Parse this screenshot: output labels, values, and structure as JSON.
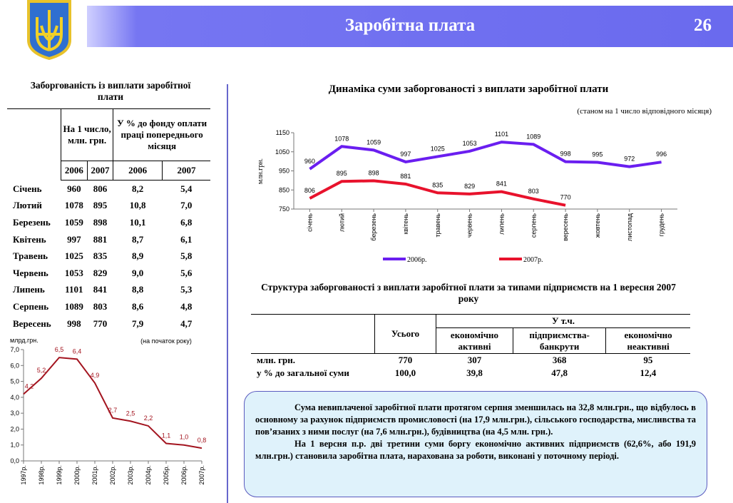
{
  "header": {
    "title": "Заробітна плата",
    "page": "26"
  },
  "table1": {
    "title": "Заборгованість із виплати заробітної плати",
    "headers": [
      "На 1 число, млн. грн.",
      "У % до фонду оплати праці попереднього місяця"
    ],
    "years": [
      "2006",
      "2007",
      "2006",
      "2007"
    ],
    "rows": [
      [
        "Січень",
        "960",
        "806",
        "8,2",
        "5,4"
      ],
      [
        "Лютий",
        "1078",
        "895",
        "10,8",
        "7,0"
      ],
      [
        "Березень",
        "1059",
        "898",
        "10,1",
        "6,8"
      ],
      [
        "Квітень",
        "997",
        "881",
        "8,7",
        "6,1"
      ],
      [
        "Травень",
        "1025",
        "835",
        "8,9",
        "5,8"
      ],
      [
        "Червень",
        "1053",
        "829",
        "9,0",
        "5,6"
      ],
      [
        "Липень",
        "1101",
        "841",
        "8,8",
        "5,3"
      ],
      [
        "Серпень",
        "1089",
        "803",
        "8,6",
        "4,8"
      ],
      [
        "Вересень",
        "998",
        "770",
        "7,9",
        "4,7"
      ]
    ]
  },
  "chart_data": [
    {
      "type": "line",
      "title": "Динаміка суми заборгованості з виплати заробітної плати",
      "subtitle": "(станом на 1 число відповідного місяця)",
      "y_label": "млн.грн.",
      "categories": [
        "січень",
        "лютий",
        "березень",
        "квітень",
        "травень",
        "червень",
        "липень",
        "серпень",
        "вересень",
        "жовтень",
        "листопад",
        "грудень"
      ],
      "series": [
        {
          "name": "2006р.",
          "color": "#6a1ef0",
          "values": [
            960,
            1078,
            1059,
            997,
            1025,
            1053,
            1101,
            1089,
            998,
            995,
            972,
            996
          ]
        },
        {
          "name": "2007р.",
          "color": "#e8122c",
          "values": [
            806,
            895,
            898,
            881,
            835,
            829,
            841,
            803,
            770,
            null,
            null,
            null
          ]
        }
      ],
      "ylim": [
        750,
        1150
      ],
      "yticks": [
        750,
        850,
        950,
        1050,
        1150
      ]
    },
    {
      "type": "line",
      "y_label": "млрд.грн.",
      "annotation": "(на початок року)",
      "color": "#a3141f",
      "categories": [
        "1997р.",
        "1998р.",
        "1999р.",
        "2000р.",
        "2001р.",
        "2002р.",
        "2003р.",
        "2004р.",
        "2005р.",
        "2006р.",
        "2007р."
      ],
      "values": [
        4.2,
        5.2,
        6.5,
        6.4,
        4.9,
        2.7,
        2.5,
        2.2,
        1.1,
        1.0,
        0.8
      ],
      "value_labels": [
        "4,2",
        "5,2",
        "6,5",
        "6,4",
        "4,9",
        "2,7",
        "2,5",
        "2,2",
        "1,1",
        "1,0",
        "0,8"
      ],
      "ylim": [
        0,
        7
      ],
      "yticks": [
        {
          "value": 0,
          "label": "0,0"
        },
        {
          "value": 1,
          "label": "1,0"
        },
        {
          "value": 2,
          "label": "2,0"
        },
        {
          "value": 3,
          "label": "3,0"
        },
        {
          "value": 4,
          "label": "4,0"
        },
        {
          "value": 5,
          "label": "5,0"
        },
        {
          "value": 6,
          "label": "6,0"
        },
        {
          "value": 7,
          "label": "7,0"
        }
      ]
    }
  ],
  "table2": {
    "title": "Структура заборгованості з виплати заробітної плати за типами підприємств на 1 вересня 2007 року",
    "total": "Усього",
    "incl": "У т.ч.",
    "sub": [
      "економічно активні",
      "підприємства-банкрути",
      "економічно неактивні"
    ],
    "rows": [
      [
        "млн. грн.",
        "770",
        "307",
        "368",
        "95"
      ],
      [
        "у % до загальної суми",
        "100,0",
        "39,8",
        "47,8",
        "12,4"
      ]
    ]
  },
  "note": {
    "paragraphs": [
      "Сума невиплаченої заробітної плати протягом серпня зменшилась на 32,8 млн.грн., що відбулось в основному за рахунок підприємств промисловості (на 17,9 млн.грн.), сільського господарства, мисливства та пов’язаних з ними послуг (на 7,6 млн.грн.), будівництва (на 4,5 млн. грн.).",
      "На 1 версня п.р. дві третини суми боргу економічно активних підприємств (62,6%, або 191,9 млн.грн.) становила заробітна плата, нарахована за роботи, виконані у поточному періоді."
    ]
  }
}
